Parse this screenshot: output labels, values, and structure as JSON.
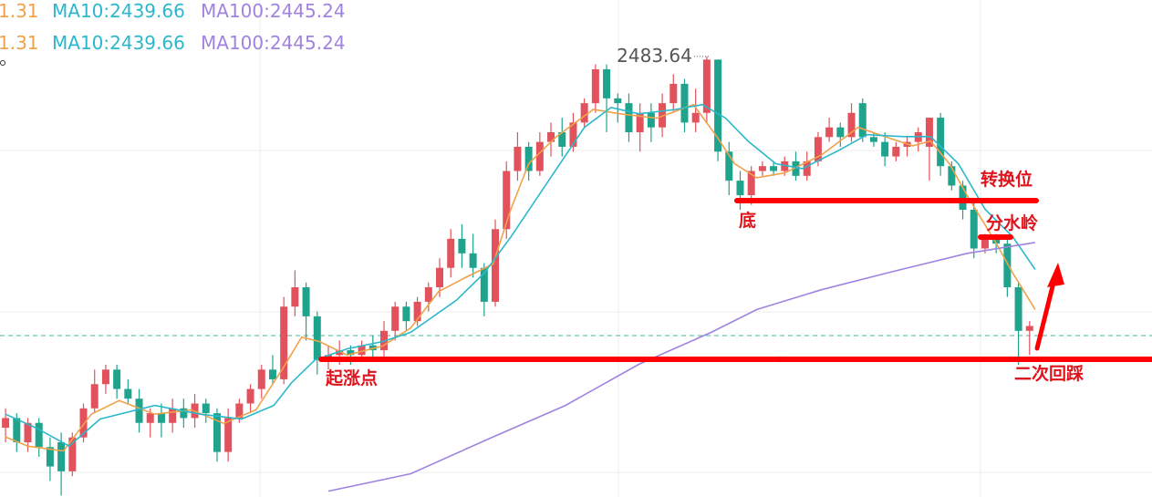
{
  "chart_data": {
    "type": "candlestick",
    "legend": [
      "1.31",
      "MA10:2439.66",
      "MA100:2445.24"
    ],
    "legend_colors": [
      "#f0a24a",
      "#2bb8cc",
      "#a083e0"
    ],
    "up_color": "#e2525c",
    "down_color": "#1fa38c",
    "ylim": [
      2392.7,
      2495.3
    ],
    "xlim": [
      -0.5,
      103
    ],
    "open": [
      2407,
      2409,
      2404,
      2408,
      2403,
      2404,
      2398,
      2405,
      2411,
      2416,
      2419,
      2415,
      2413,
      2408,
      2410,
      2408,
      2411,
      2409,
      2412,
      2410,
      2402,
      2409,
      2412,
      2415,
      2419,
      2417,
      2432,
      2436,
      2430,
      2421,
      2422,
      2423,
      2422,
      2424,
      2423,
      2427,
      2432,
      2429,
      2433,
      2436,
      2440,
      2446,
      2443,
      2440,
      2433,
      2448,
      2460,
      2465,
      2460,
      2466,
      2468,
      2465,
      2470,
      2474,
      2481,
      2475,
      2474,
      2468,
      2472,
      2469,
      2474,
      2478,
      2470,
      2472,
      2483,
      2464,
      2458,
      2455,
      2460,
      2461,
      2460,
      2462,
      2459,
      2462,
      2467,
      2469,
      2467,
      2474,
      2467,
      2466,
      2463,
      2465,
      2466,
      2465,
      2471,
      2461,
      2457,
      2452,
      2444,
      2446,
      2445,
      2436,
      2427
    ],
    "high": [
      2411,
      2410,
      2409,
      2409,
      2405,
      2406,
      2406,
      2412,
      2419,
      2420,
      2420,
      2417,
      2415,
      2411,
      2412,
      2413,
      2413,
      2414,
      2413,
      2411,
      2411,
      2413,
      2416,
      2420,
      2422,
      2434,
      2439.5,
      2437,
      2431,
      2424,
      2425,
      2424,
      2425,
      2426,
      2429,
      2433,
      2433,
      2434,
      2437,
      2442,
      2448,
      2449,
      2447,
      2441,
      2450,
      2462,
      2468,
      2466,
      2468,
      2470,
      2471,
      2472,
      2475,
      2482,
      2482,
      2476,
      2476,
      2474,
      2474,
      2476,
      2480,
      2479,
      2477,
      2483.64,
      2483,
      2466,
      2460,
      2461,
      2462,
      2462,
      2463,
      2464,
      2464,
      2468,
      2471,
      2470,
      2474,
      2475,
      2468,
      2468,
      2466,
      2467,
      2469,
      2471,
      2472,
      2462,
      2458,
      2454,
      2447,
      2447,
      2446,
      2437,
      2429
    ],
    "low": [
      2404,
      2402,
      2402,
      2401,
      2396,
      2393,
      2397,
      2404,
      2410,
      2414,
      2413,
      2412,
      2406,
      2405,
      2405,
      2406,
      2407,
      2407,
      2408,
      2400,
      2400,
      2408,
      2410,
      2413,
      2416,
      2416,
      2430,
      2425,
      2418,
      2419,
      2420,
      2420,
      2421,
      2421,
      2421,
      2425,
      2427,
      2428,
      2431,
      2434,
      2438,
      2440,
      2438,
      2430,
      2432,
      2446,
      2458,
      2458,
      2459,
      2463,
      2463,
      2464,
      2469,
      2472,
      2468,
      2470,
      2466,
      2464,
      2466,
      2467,
      2472,
      2468,
      2468,
      2470,
      2462,
      2455,
      2452,
      2453,
      2459,
      2459,
      2459,
      2458,
      2458,
      2461,
      2466,
      2465,
      2466,
      2466,
      2465,
      2461,
      2462,
      2463,
      2464,
      2458,
      2459,
      2456,
      2450,
      2442,
      2443,
      2443,
      2434,
      2420,
      2422
    ],
    "close": [
      2409,
      2404,
      2408,
      2403,
      2399,
      2398,
      2405,
      2411,
      2416,
      2419,
      2415,
      2413,
      2408,
      2410,
      2408,
      2411,
      2409,
      2412,
      2410,
      2402,
      2409,
      2412,
      2415,
      2419,
      2417,
      2432,
      2436,
      2430,
      2421,
      2422,
      2423,
      2422,
      2424,
      2423,
      2427,
      2432,
      2429,
      2433,
      2436,
      2440,
      2446,
      2443,
      2440,
      2433,
      2448,
      2460,
      2465,
      2460,
      2466,
      2468,
      2465,
      2470,
      2474,
      2481,
      2475,
      2474,
      2468,
      2472,
      2469,
      2474,
      2478,
      2470,
      2472,
      2483,
      2464,
      2458,
      2455,
      2460,
      2461,
      2460,
      2462,
      2459,
      2462,
      2467,
      2469,
      2467,
      2472,
      2467,
      2466,
      2463,
      2465,
      2466,
      2468,
      2471,
      2461,
      2457,
      2452,
      2444,
      2446,
      2445,
      2436,
      2427,
      2428
    ],
    "max_index": 63,
    "series": [
      {
        "color": "#f0a24a",
        "x": [
          0,
          2.0,
          5.2,
          7.7,
          10.2,
          13.4,
          16.7,
          19.6,
          22.5,
          24.9,
          26.6,
          28.2,
          30.7,
          33.9,
          36.4,
          38.9,
          41.3,
          43.8,
          45.4,
          47.0,
          49.5,
          52.8,
          55.2,
          58.5,
          61.8,
          63.9,
          65.5,
          67.5,
          70.0,
          73.3,
          76.6,
          79.0,
          81.5,
          83.1,
          84.8,
          86.4,
          88.9,
          90.5,
          92.5
        ],
        "values": [
          2405.1,
          2403.2,
          2402.2,
          2409.8,
          2412.6,
          2409.8,
          2410.7,
          2407.9,
          2410.7,
          2419.2,
          2425.7,
          2424.8,
          2422.0,
          2423.9,
          2427.6,
          2435.1,
          2438.0,
          2440.8,
          2452.1,
          2461.5,
          2467.1,
          2472.7,
          2471.8,
          2470.9,
          2473.7,
          2467.1,
          2461.5,
          2458.6,
          2459.6,
          2463.3,
          2469.0,
          2467.1,
          2465.2,
          2466.2,
          2461.5,
          2454.9,
          2445.5,
          2438.9,
          2431.4
        ]
      },
      {
        "color": "#2bb8cc",
        "x": [
          0,
          2.8,
          5.7,
          8.5,
          13.4,
          17.5,
          21.2,
          24.1,
          25.7,
          27.8,
          30.7,
          33.9,
          36.4,
          40.5,
          43.0,
          45.4,
          48.7,
          52.0,
          54.4,
          56.9,
          60.2,
          62.6,
          64.7,
          66.7,
          69.2,
          71.6,
          74.9,
          77.4,
          80.7,
          83.1,
          85.6,
          88.0,
          90.5,
          92.5
        ],
        "values": [
          2409.8,
          2406.9,
          2403.2,
          2408.8,
          2411.6,
          2409.8,
          2408.8,
          2411.6,
          2416.3,
          2421.0,
          2423.3,
          2424.8,
          2426.7,
          2433.3,
          2438.9,
          2446.4,
          2457.7,
          2469.0,
          2473.1,
          2471.8,
          2472.7,
          2473.7,
          2470.9,
          2466.2,
          2461.5,
          2460.5,
          2464.3,
          2467.5,
          2467.1,
          2467.1,
          2461.5,
          2452.1,
          2446.4,
          2439.66
        ]
      },
      {
        "color": "#a083e0",
        "x": [
          29.0,
          36.4,
          43.8,
          50.3,
          56.9,
          63.4,
          67.5,
          73.3,
          79.8,
          86.4,
          92.5
        ],
        "values": [
          2393.9,
          2397.5,
          2405.1,
          2411.6,
          2420.1,
          2426.7,
          2431.4,
          2435.5,
          2439.3,
          2443.0,
          2445.24
        ]
      }
    ],
    "annotations": [
      "转换位",
      "分水岭",
      "底",
      "起涨点",
      "二次回踩"
    ]
  }
}
